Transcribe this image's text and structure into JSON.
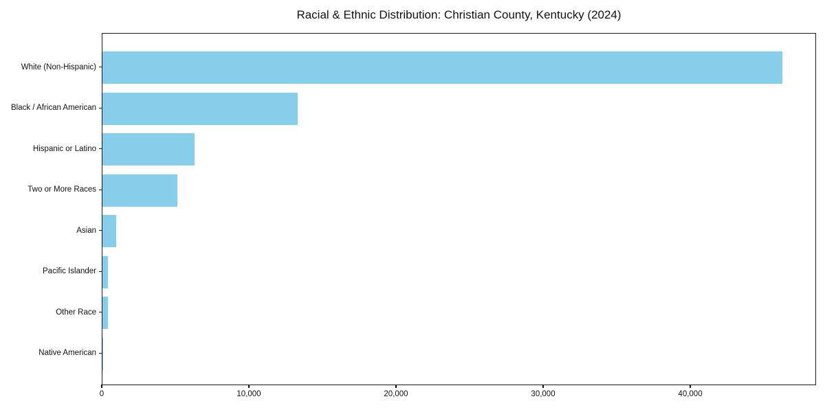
{
  "chart_data": {
    "type": "bar",
    "orientation": "horizontal",
    "title": "Racial & Ethnic Distribution: Christian County, Kentucky (2024)",
    "categories": [
      "White (Non-Hispanic)",
      "Black / African American",
      "Hispanic or Latino",
      "Two or More Races",
      "Asian",
      "Pacific Islander",
      "Other Race",
      "Native American"
    ],
    "values": [
      46200,
      13270,
      6260,
      5090,
      930,
      370,
      380,
      60
    ],
    "xlabel": "",
    "ylabel": "",
    "xlim": [
      0,
      48550
    ],
    "xticks": [
      {
        "value": 0,
        "label": "0"
      },
      {
        "value": 10000,
        "label": "10,000"
      },
      {
        "value": 20000,
        "label": "20,000"
      },
      {
        "value": 30000,
        "label": "30,000"
      },
      {
        "value": 40000,
        "label": "40,000"
      }
    ],
    "grid": false,
    "legend": false,
    "bar_color": "#87CEEB",
    "frame_color": "#15151f",
    "background_color": "#ffffff"
  }
}
